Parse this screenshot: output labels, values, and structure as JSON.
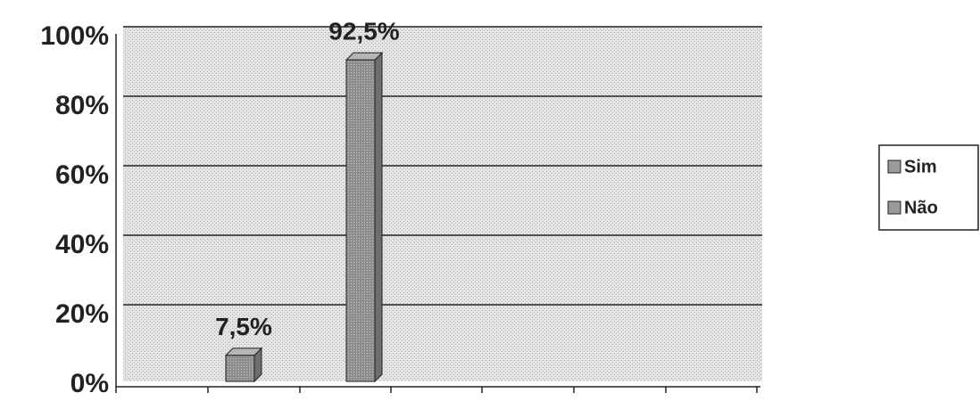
{
  "chart_data": {
    "type": "bar3d",
    "categories": [
      null
    ],
    "series": [
      {
        "name": "Sim",
        "color": "#9a9a9a",
        "values": [
          7.5
        ],
        "value_labels": [
          "7,5%"
        ]
      },
      {
        "name": "Não",
        "color": "#9a9a9a",
        "values": [
          92.5
        ],
        "value_labels": [
          "92,5%"
        ]
      }
    ],
    "ylim": [
      0,
      100
    ],
    "yticks": [
      {
        "value": 0,
        "label": "0%"
      },
      {
        "value": 20,
        "label": "20%"
      },
      {
        "value": 40,
        "label": "40%"
      },
      {
        "value": 60,
        "label": "60%"
      },
      {
        "value": 80,
        "label": "80%"
      },
      {
        "value": 100,
        "label": "100%"
      }
    ],
    "grid": true,
    "legend": "right"
  }
}
